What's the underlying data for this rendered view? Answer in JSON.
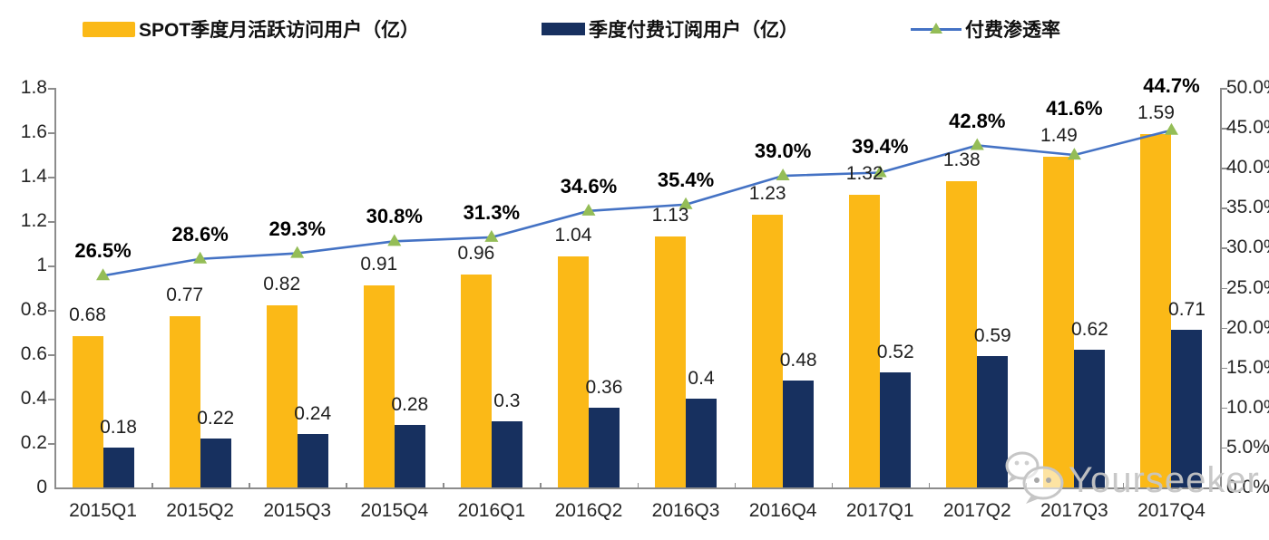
{
  "legend": {
    "items": [
      {
        "label": "SPOT季度月活跃访问用户（亿）",
        "swatch": "bar",
        "color": "#FBB917"
      },
      {
        "label": "季度付费订阅用户（亿）",
        "swatch": "bar",
        "color": "#17305F"
      },
      {
        "label": "付费渗透率",
        "swatch": "line-triangle",
        "color": "#4472C4",
        "marker_color": "#94BD57"
      }
    ]
  },
  "chart_data": {
    "type": "bar",
    "subtype": "combo-bar-line-dual-axis",
    "categories": [
      "2015Q1",
      "2015Q2",
      "2015Q3",
      "2015Q4",
      "2016Q1",
      "2016Q2",
      "2016Q3",
      "2016Q4",
      "2017Q1",
      "2017Q2",
      "2017Q3",
      "2017Q4"
    ],
    "series": [
      {
        "name": "SPOT季度月活跃访问用户（亿）",
        "type": "bar",
        "axis": "left",
        "color": "#FBB917",
        "values": [
          0.68,
          0.77,
          0.82,
          0.91,
          0.96,
          1.04,
          1.13,
          1.23,
          1.32,
          1.38,
          1.49,
          1.59
        ],
        "labels": [
          "0.68",
          "0.77",
          "0.82",
          "0.91",
          "0.96",
          "1.04",
          "1.13",
          "1.23",
          "1.32",
          "1.38",
          "1.49",
          "1.59"
        ]
      },
      {
        "name": "季度付费订阅用户（亿）",
        "type": "bar",
        "axis": "left",
        "color": "#17305F",
        "values": [
          0.18,
          0.22,
          0.24,
          0.28,
          0.3,
          0.36,
          0.4,
          0.48,
          0.52,
          0.59,
          0.62,
          0.71
        ],
        "labels": [
          "0.18",
          "0.22",
          "0.24",
          "0.28",
          "0.3",
          "0.36",
          "0.4",
          "0.48",
          "0.52",
          "0.59",
          "0.62",
          "0.71"
        ]
      },
      {
        "name": "付费渗透率",
        "type": "line",
        "axis": "right",
        "color": "#4472C4",
        "marker": "triangle",
        "marker_color": "#94BD57",
        "values": [
          26.5,
          28.6,
          29.3,
          30.8,
          31.3,
          34.6,
          35.4,
          39.0,
          39.4,
          42.8,
          41.6,
          44.7
        ],
        "labels": [
          "26.5%",
          "28.6%",
          "29.3%",
          "30.8%",
          "31.3%",
          "34.6%",
          "35.4%",
          "39.0%",
          "39.4%",
          "42.8%",
          "41.6%",
          "44.7%"
        ]
      }
    ],
    "left_axis": {
      "min": 0,
      "max": 1.8,
      "ticks": [
        "0",
        "0.2",
        "0.4",
        "0.6",
        "0.8",
        "1",
        "1.2",
        "1.4",
        "1.6",
        "1.8"
      ]
    },
    "right_axis": {
      "min": 0,
      "max": 50,
      "ticks": [
        "0.0%",
        "5.0%",
        "10.0%",
        "15.0%",
        "20.0%",
        "25.0%",
        "30.0%",
        "35.0%",
        "40.0%",
        "45.0%",
        "50.0%"
      ]
    },
    "grid": false,
    "legend_position": "top"
  },
  "watermark": {
    "text": "Yourseeker",
    "icon": "wechat-icon"
  },
  "colors": {
    "bar_mau": "#FBB917",
    "bar_sub": "#17305F",
    "line": "#4472C4",
    "marker": "#94BD57",
    "axis": "#8C8C8C",
    "text": "#262626",
    "watermark": "#C6C6C6"
  }
}
